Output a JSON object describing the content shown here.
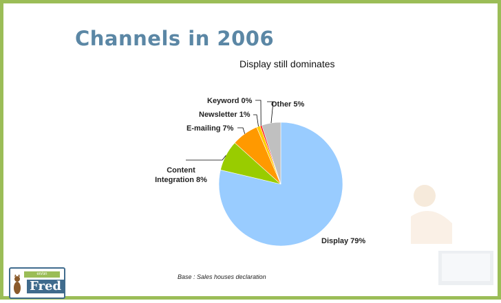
{
  "slide": {
    "title": "Channels in 2006",
    "subtitle": "Display still dominates",
    "footnote": "Base : Sales houses declaration"
  },
  "logo": {
    "text": "Fred",
    "band_text": "en/on"
  },
  "colors": {
    "title": "#5b87a5",
    "frame": "#9bbd57",
    "display": "#99ccff",
    "content_integration": "#99cc00",
    "emailing": "#ff9900",
    "newsletter": "#ffcc00",
    "keyword": "#ff0000",
    "other": "#c0c0c0"
  },
  "chart_data": {
    "type": "pie",
    "title": "Display still dominates",
    "slices": [
      {
        "label": "Display 79%",
        "name": "Display",
        "value": 79,
        "color": "#99ccff"
      },
      {
        "label": "Content Integration 8%",
        "name": "Content Integration",
        "value": 8,
        "color": "#99cc00"
      },
      {
        "label": "E-mailing 7%",
        "name": "E-mailing",
        "value": 7,
        "color": "#ff9900"
      },
      {
        "label": "Newsletter 1%",
        "name": "Newsletter",
        "value": 1,
        "color": "#ffcc00"
      },
      {
        "label": "Keyword 0%",
        "name": "Keyword",
        "value": 0,
        "color": "#ff0000"
      },
      {
        "label": "Other 5%",
        "name": "Other",
        "value": 5,
        "color": "#c0c0c0"
      }
    ],
    "start_angle": "12 o'clock",
    "direction": "clockwise",
    "legend": "none"
  }
}
